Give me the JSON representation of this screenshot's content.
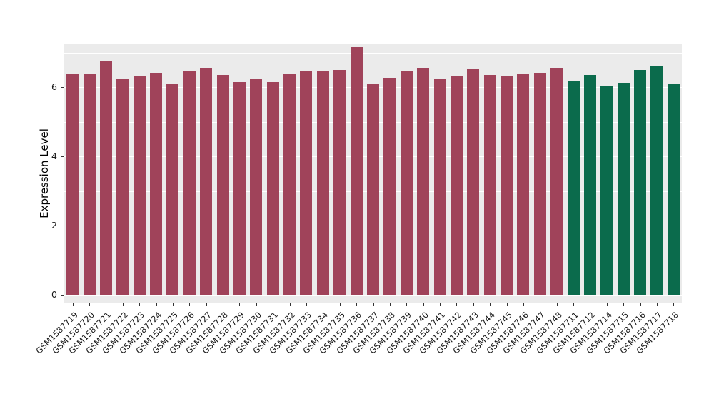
{
  "chart_data": {
    "type": "bar",
    "title": "",
    "xlabel": "",
    "ylabel": "Expression Level",
    "ylim": [
      0,
      7.24
    ],
    "yticks": [
      "0",
      "2",
      "4",
      "6"
    ],
    "ytick_values": [
      0,
      2,
      4,
      6
    ],
    "minor_gridline_values": [
      1,
      3,
      5,
      7
    ],
    "grid": "on",
    "legend_position": "none",
    "panel_background_color": "#EBEBEB",
    "gridline_color": "#ffffff",
    "categories": [
      "GSM1587719",
      "GSM1587720",
      "GSM1587721",
      "GSM1587722",
      "GSM1587723",
      "GSM1587724",
      "GSM1587725",
      "GSM1587726",
      "GSM1587727",
      "GSM1587728",
      "GSM1587729",
      "GSM1587730",
      "GSM1587731",
      "GSM1587732",
      "GSM1587733",
      "GSM1587734",
      "GSM1587735",
      "GSM1587736",
      "GSM1587737",
      "GSM1587738",
      "GSM1587739",
      "GSM1587740",
      "GSM1587741",
      "GSM1587742",
      "GSM1587743",
      "GSM1587744",
      "GSM1587745",
      "GSM1587746",
      "GSM1587747",
      "GSM1587748",
      "GSM1587711",
      "GSM1587712",
      "GSM1587714",
      "GSM1587715",
      "GSM1587716",
      "GSM1587717",
      "GSM1587718"
    ],
    "values": [
      6.4,
      6.37,
      6.75,
      6.22,
      6.32,
      6.42,
      6.08,
      6.48,
      6.55,
      6.35,
      6.15,
      6.22,
      6.15,
      6.37,
      6.48,
      6.48,
      6.5,
      7.15,
      6.08,
      6.27,
      6.47,
      6.55,
      6.22,
      6.33,
      6.52,
      6.35,
      6.32,
      6.4,
      6.42,
      6.55,
      6.17,
      6.35,
      6.02,
      6.12,
      6.5,
      6.6,
      6.1
    ],
    "bar_groups": [
      "g1",
      "g1",
      "g1",
      "g1",
      "g1",
      "g1",
      "g1",
      "g1",
      "g1",
      "g1",
      "g1",
      "g1",
      "g1",
      "g1",
      "g1",
      "g1",
      "g1",
      "g1",
      "g1",
      "g1",
      "g1",
      "g1",
      "g1",
      "g1",
      "g1",
      "g1",
      "g1",
      "g1",
      "g1",
      "g1",
      "g2",
      "g2",
      "g2",
      "g2",
      "g2",
      "g2",
      "g2"
    ],
    "group_colors": {
      "g1": "#A0435A",
      "g2": "#0B6B4C"
    }
  }
}
